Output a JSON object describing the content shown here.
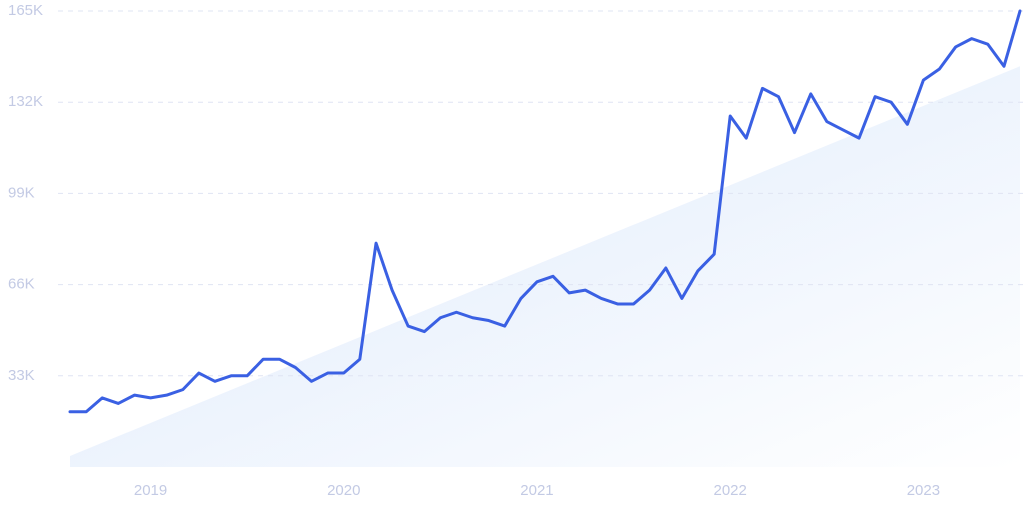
{
  "chart_data": {
    "type": "line",
    "x": [
      2018.583,
      2018.667,
      2018.75,
      2018.833,
      2018.917,
      2019,
      2019.083,
      2019.167,
      2019.25,
      2019.333,
      2019.417,
      2019.5,
      2019.583,
      2019.667,
      2019.75,
      2019.833,
      2019.917,
      2020,
      2020.083,
      2020.167,
      2020.25,
      2020.333,
      2020.417,
      2020.5,
      2020.583,
      2020.667,
      2020.75,
      2020.833,
      2020.917,
      2021,
      2021.083,
      2021.167,
      2021.25,
      2021.333,
      2021.417,
      2021.5,
      2021.583,
      2021.667,
      2021.75,
      2021.833,
      2021.917,
      2022,
      2022.083,
      2022.167,
      2022.25,
      2022.333,
      2022.417,
      2022.5,
      2022.583,
      2022.667,
      2022.75,
      2022.833,
      2022.917,
      2023,
      2023.083,
      2023.167,
      2023.25,
      2023.333,
      2023.417,
      2023.5
    ],
    "series": [
      {
        "color": "#3a60e3",
        "values": [
          20000,
          20000,
          25000,
          23000,
          26000,
          25000,
          26000,
          28000,
          34000,
          31000,
          33000,
          33000,
          39000,
          39000,
          36000,
          31000,
          34000,
          34000,
          39000,
          81000,
          64000,
          51000,
          49000,
          54000,
          56000,
          54000,
          53000,
          51000,
          61000,
          67000,
          69000,
          63000,
          64000,
          61000,
          59000,
          59000,
          64000,
          72000,
          61000,
          71000,
          77000,
          127000,
          119000,
          137000,
          134000,
          121000,
          135000,
          125000,
          122000,
          119000,
          134000,
          132000,
          124000,
          140000,
          144000,
          152000,
          155000,
          153000,
          145000,
          165000
        ]
      }
    ],
    "trend": [
      4000,
      145000
    ],
    "xlim": [
      2018.583,
      2023.5
    ],
    "xticks": [
      2019,
      2020,
      2021,
      2022,
      2023
    ],
    "ylim": [
      0,
      165000
    ],
    "yticks": [
      {
        "value": 33000,
        "label": "33K"
      },
      {
        "value": 66000,
        "label": "66K"
      },
      {
        "value": 99000,
        "label": "99K"
      },
      {
        "value": 132000,
        "label": "132K"
      },
      {
        "value": 165000,
        "label": "165K"
      }
    ],
    "grid": true
  }
}
